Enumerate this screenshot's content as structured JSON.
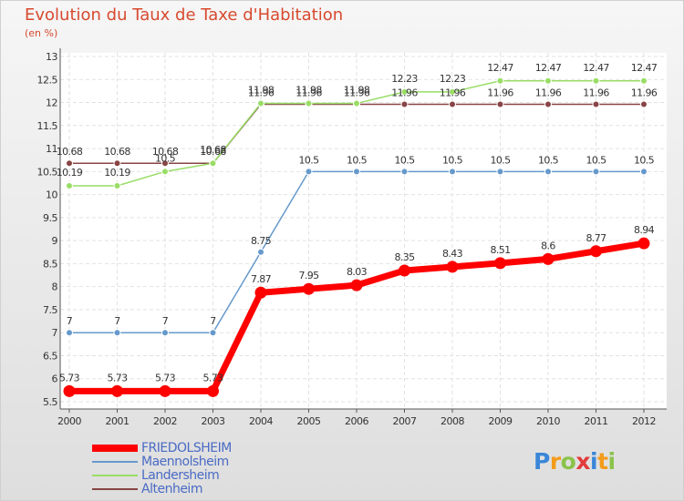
{
  "title": "Evolution du Taux de Taxe d'Habitation",
  "subtitle": "(en %)",
  "brand": {
    "text": "Proxiti",
    "colors": [
      "#3a86d8",
      "#f39c1c",
      "#8bc34a",
      "#e33b3b",
      "#3a86d8",
      "#f39c1c",
      "#8bc34a"
    ]
  },
  "chart_data": {
    "type": "line",
    "x": [
      "2000",
      "2001",
      "2002",
      "2003",
      "2004",
      "2005",
      "2006",
      "2007",
      "2008",
      "2009",
      "2010",
      "2011",
      "2012"
    ],
    "ylim": [
      5.5,
      13
    ],
    "yticks": [
      "5.5",
      "6",
      "6.5",
      "7",
      "7.5",
      "8",
      "8.5",
      "9",
      "9.5",
      "10",
      "10.5",
      "11",
      "11.5",
      "12",
      "12.5",
      "13"
    ],
    "grid": true,
    "legend_position": "bottom-left",
    "series": [
      {
        "name": "FRIEDOLSHEIM",
        "color": "#ff0000",
        "values": [
          5.73,
          5.73,
          5.73,
          5.73,
          7.87,
          7.95,
          8.03,
          8.35,
          8.43,
          8.51,
          8.6,
          8.77,
          8.94
        ],
        "labels": [
          "5.73",
          "5.73",
          "5.73",
          "5.73",
          "7.87",
          "7.95",
          "8.03",
          "8.35",
          "8.43",
          "8.51",
          "8.6",
          "8.77",
          "8.94"
        ]
      },
      {
        "name": "Maennolsheim",
        "color": "#6699cc",
        "values": [
          7,
          7,
          7,
          7,
          8.75,
          10.5,
          10.5,
          10.5,
          10.5,
          10.5,
          10.5,
          10.5,
          10.5
        ],
        "labels": [
          "7",
          "7",
          "7",
          "7",
          "8.75",
          "10.5",
          "10.5",
          "10.5",
          "10.5",
          "10.5",
          "10.5",
          "10.5",
          "10.5"
        ]
      },
      {
        "name": "Landersheim",
        "color": "#99dd66",
        "values": [
          10.19,
          10.19,
          10.5,
          10.68,
          11.98,
          11.98,
          11.98,
          12.23,
          12.23,
          12.47,
          12.47,
          12.47,
          12.47
        ],
        "labels": [
          "10.19",
          "10.19",
          "10.5",
          "10.68",
          "11.98",
          "11.98",
          "11.98",
          "12.23",
          "12.23",
          "12.47",
          "12.47",
          "12.47",
          "12.47"
        ]
      },
      {
        "name": "Altenheim",
        "color": "#884444",
        "values": [
          10.68,
          10.68,
          10.68,
          10.68,
          11.96,
          11.96,
          11.96,
          11.96,
          11.96,
          11.96,
          11.96,
          11.96,
          11.96
        ],
        "labels": [
          "10.68",
          "10.68",
          "10.68",
          "10.68",
          "11.96",
          "11.96",
          "11.96",
          "11.96",
          "11.96",
          "11.96",
          "11.96",
          "11.96",
          "11.96"
        ]
      }
    ]
  }
}
